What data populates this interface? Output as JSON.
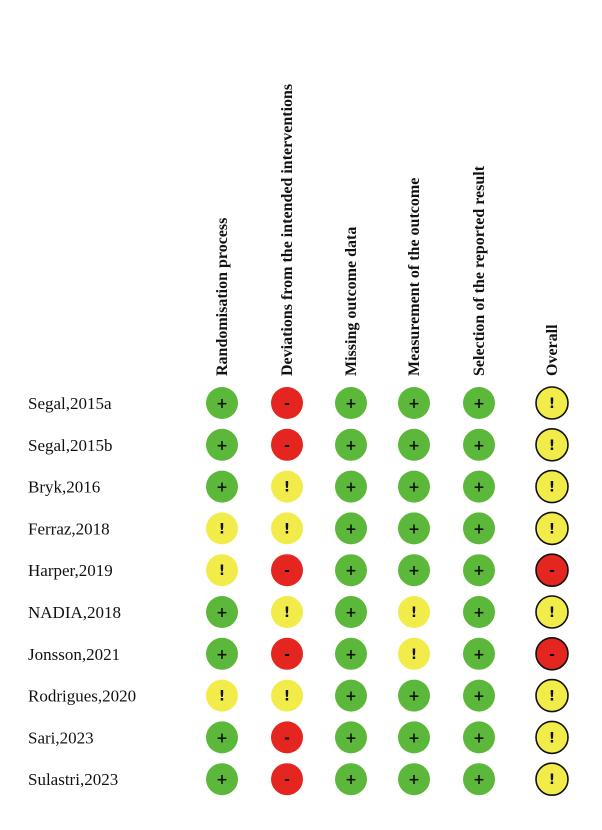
{
  "chart_data": {
    "type": "table",
    "title": "",
    "columns": [
      "Randomisation process",
      "Deviations from the intended interventions",
      "Missing outcome data",
      "Measurement of the outcome",
      "Selection of the reported result",
      "Overall"
    ],
    "rows": [
      {
        "study": "Segal,2015a",
        "ratings": [
          "low",
          "high",
          "low",
          "low",
          "low",
          "some"
        ]
      },
      {
        "study": "Segal,2015b",
        "ratings": [
          "low",
          "high",
          "low",
          "low",
          "low",
          "some"
        ]
      },
      {
        "study": "Bryk,2016",
        "ratings": [
          "low",
          "some",
          "low",
          "low",
          "low",
          "some"
        ]
      },
      {
        "study": "Ferraz,2018",
        "ratings": [
          "some",
          "some",
          "low",
          "low",
          "low",
          "some"
        ]
      },
      {
        "study": "Harper,2019",
        "ratings": [
          "some",
          "high",
          "low",
          "low",
          "low",
          "high"
        ]
      },
      {
        "study": "NADIA,2018",
        "ratings": [
          "low",
          "some",
          "low",
          "some",
          "low",
          "some"
        ]
      },
      {
        "study": "Jonsson,2021",
        "ratings": [
          "low",
          "high",
          "low",
          "some",
          "low",
          "high"
        ]
      },
      {
        "study": "Rodrigues,2020",
        "ratings": [
          "some",
          "some",
          "low",
          "low",
          "low",
          "some"
        ]
      },
      {
        "study": "Sari,2023",
        "ratings": [
          "low",
          "high",
          "low",
          "low",
          "low",
          "some"
        ]
      },
      {
        "study": "Sulastri,2023",
        "ratings": [
          "low",
          "high",
          "low",
          "low",
          "low",
          "some"
        ]
      }
    ],
    "legend": {
      "low": {
        "symbol": "+",
        "color": "#5cb83a"
      },
      "some": {
        "symbol": "!",
        "color": "#f2ec4a"
      },
      "high": {
        "symbol": "-",
        "color": "#e52620"
      }
    },
    "overall_outline_color": "#111111"
  }
}
